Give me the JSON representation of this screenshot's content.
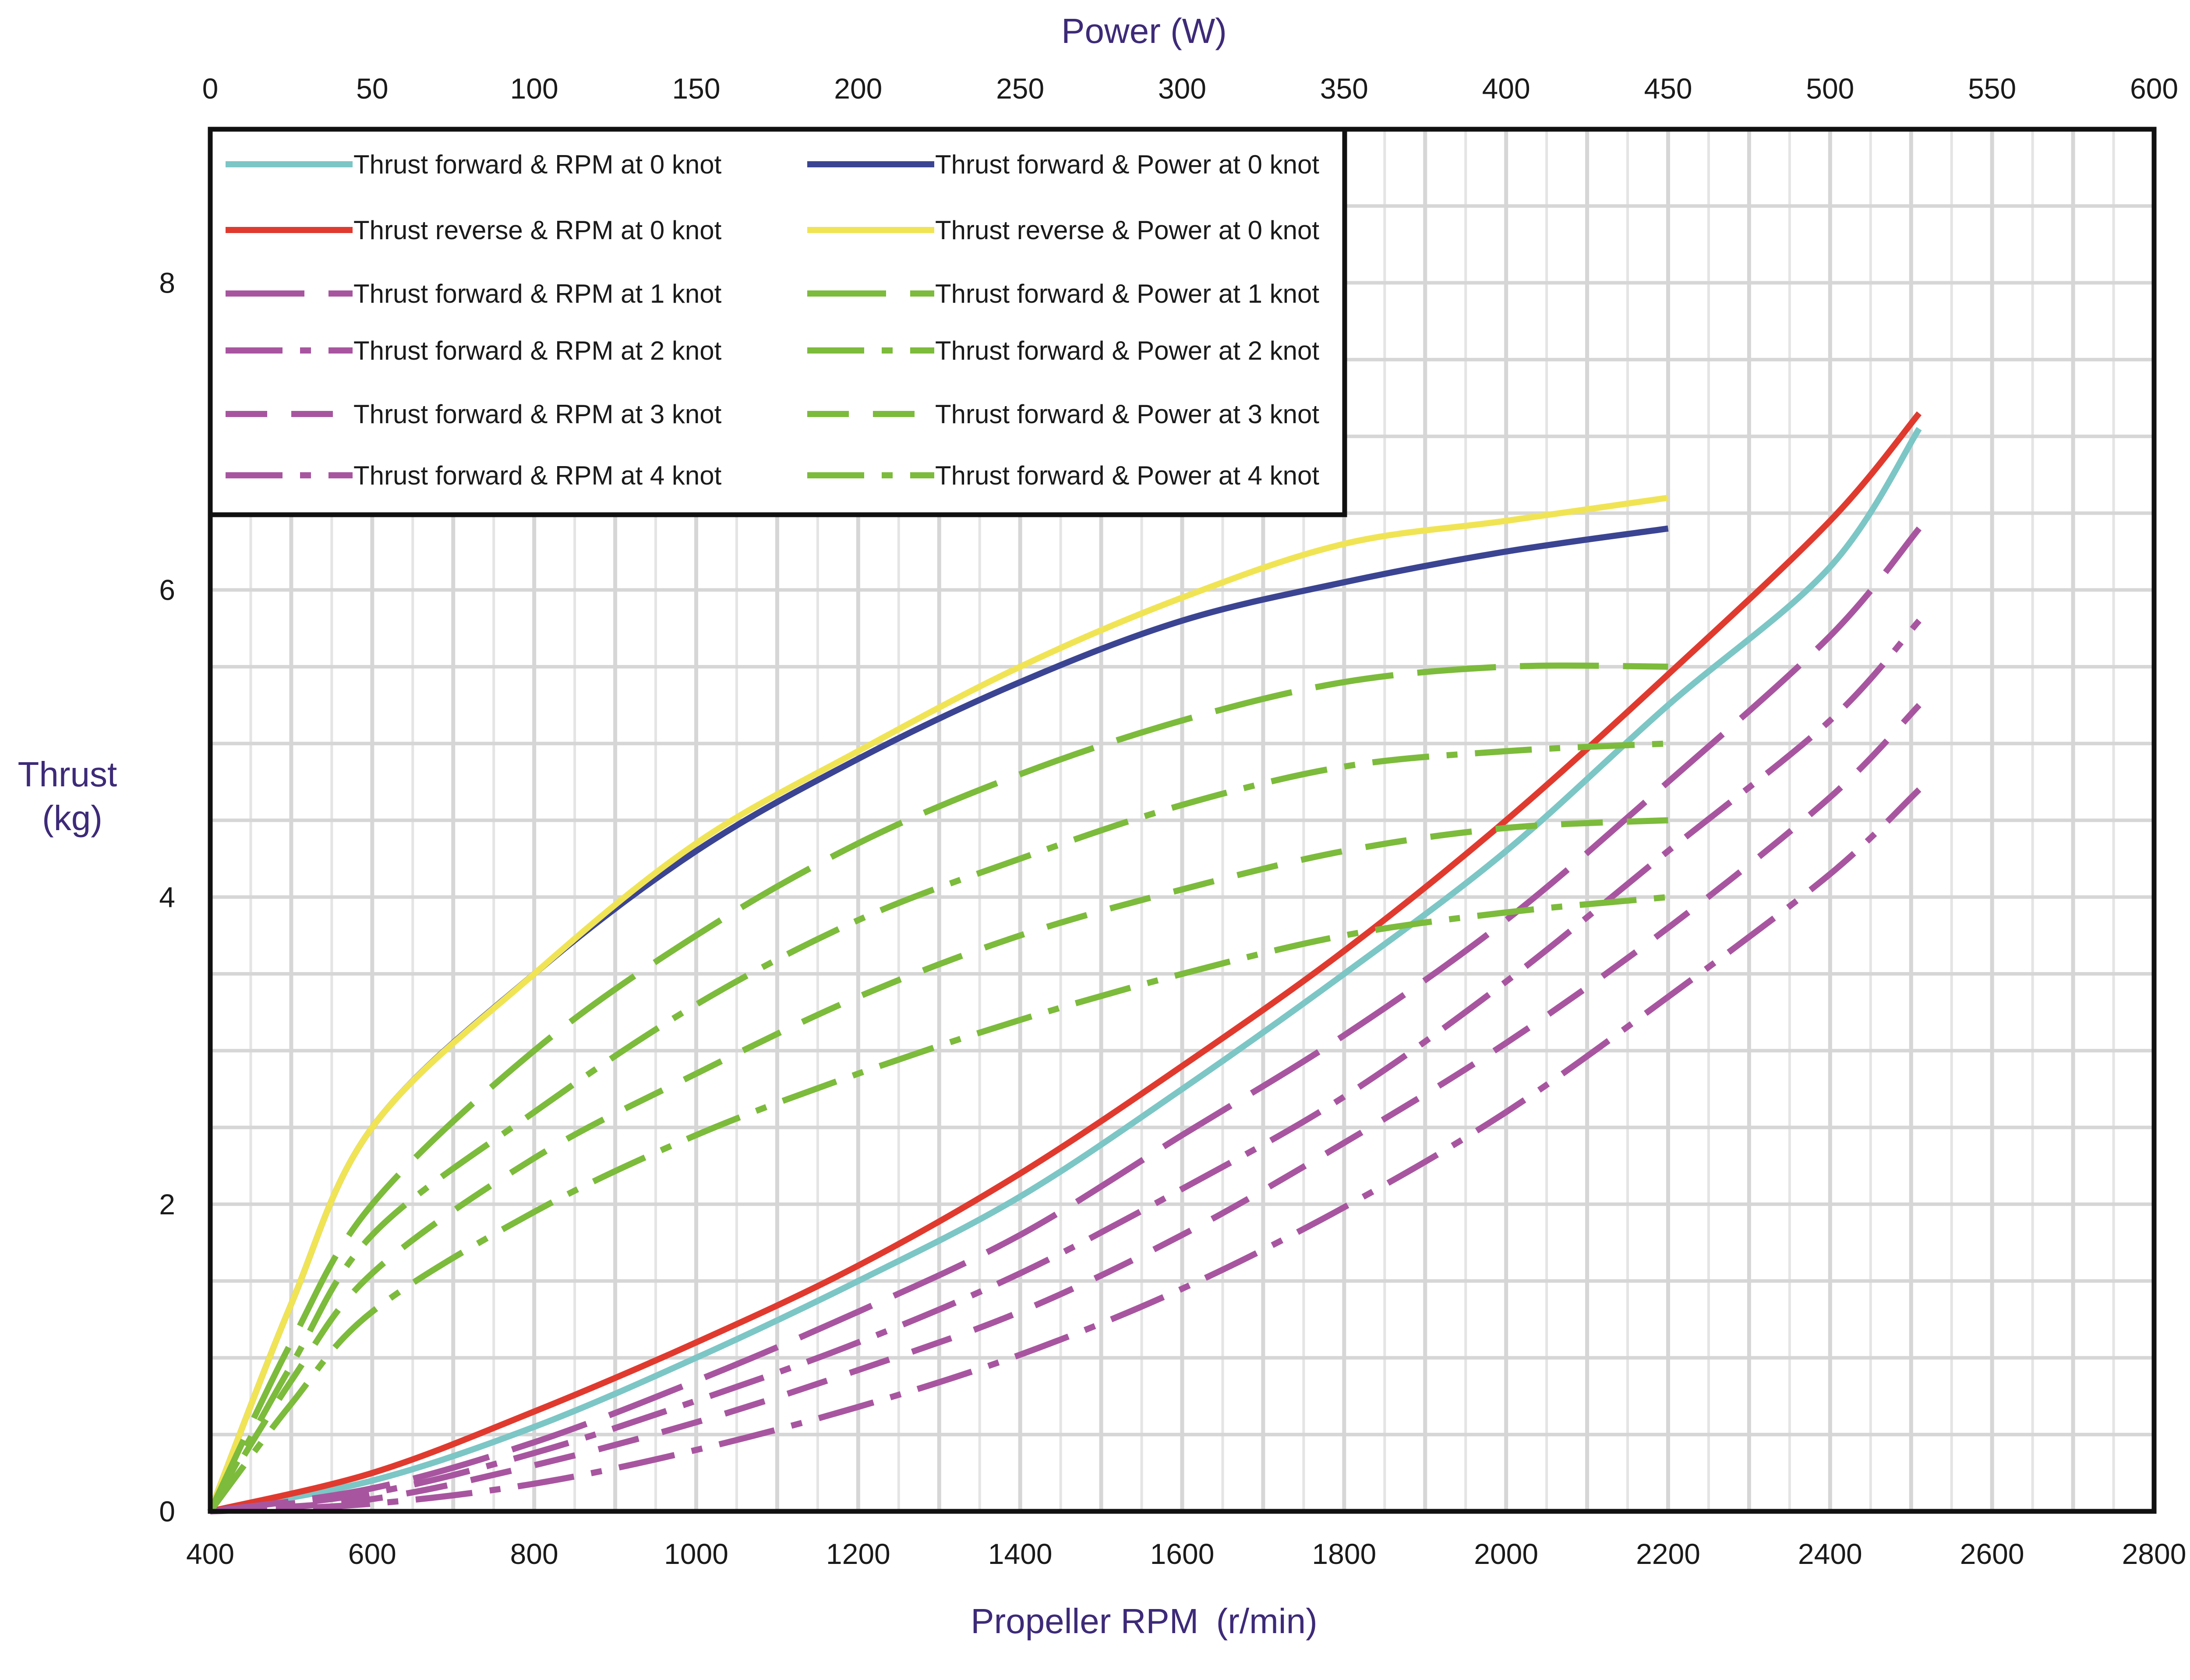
{
  "chart_data": {
    "type": "line",
    "top_axis": {
      "label": "Power (W)",
      "range": [
        0,
        600
      ],
      "ticks": [
        0,
        50,
        100,
        150,
        200,
        250,
        300,
        350,
        400,
        450,
        500,
        550,
        600
      ]
    },
    "bottom_axis": {
      "label_main": "Propeller RPM",
      "label_unit": "(r/min)",
      "range": [
        400,
        2800
      ],
      "ticks": [
        400,
        600,
        800,
        1000,
        1200,
        1400,
        1600,
        1800,
        2000,
        2200,
        2400,
        2600,
        2800
      ]
    },
    "y_axis": {
      "label_line1": "Thrust",
      "label_line2": "(kg)",
      "range": [
        0,
        9
      ],
      "ticks": [
        0,
        2,
        4,
        6,
        8
      ]
    },
    "grid": true,
    "legend_position": "top-left",
    "series": [
      {
        "name": "Thrust forward &  RPM at 0 knot",
        "axis": "rpm",
        "color": "#7cc6c6",
        "dash": "solid",
        "points": [
          [
            400,
            0
          ],
          [
            600,
            0.2
          ],
          [
            800,
            0.55
          ],
          [
            1000,
            1.0
          ],
          [
            1200,
            1.5
          ],
          [
            1400,
            2.05
          ],
          [
            1600,
            2.75
          ],
          [
            1800,
            3.5
          ],
          [
            2000,
            4.3
          ],
          [
            2200,
            5.25
          ],
          [
            2400,
            6.15
          ],
          [
            2510,
            7.05
          ]
        ]
      },
      {
        "name": "Thrust reverse &   RPM at 0 knot",
        "axis": "rpm",
        "color": "#e03a2f",
        "dash": "solid",
        "points": [
          [
            400,
            0
          ],
          [
            600,
            0.25
          ],
          [
            800,
            0.65
          ],
          [
            1000,
            1.1
          ],
          [
            1200,
            1.6
          ],
          [
            1400,
            2.2
          ],
          [
            1600,
            2.9
          ],
          [
            1800,
            3.65
          ],
          [
            2000,
            4.5
          ],
          [
            2200,
            5.45
          ],
          [
            2400,
            6.45
          ],
          [
            2510,
            7.15
          ]
        ]
      },
      {
        "name": "Thrust forward &  RPM at 1 knot",
        "axis": "rpm",
        "color": "#a855a0",
        "dash": "longdash",
        "points": [
          [
            400,
            0
          ],
          [
            600,
            0.15
          ],
          [
            800,
            0.45
          ],
          [
            1000,
            0.85
          ],
          [
            1200,
            1.3
          ],
          [
            1400,
            1.8
          ],
          [
            1600,
            2.45
          ],
          [
            1800,
            3.1
          ],
          [
            2000,
            3.85
          ],
          [
            2200,
            4.75
          ],
          [
            2400,
            5.7
          ],
          [
            2510,
            6.4
          ]
        ]
      },
      {
        "name": "Thrust forward &  RPM at 2 knot",
        "axis": "rpm",
        "color": "#a855a0",
        "dash": "dashdot",
        "points": [
          [
            400,
            0
          ],
          [
            600,
            0.12
          ],
          [
            800,
            0.38
          ],
          [
            1000,
            0.72
          ],
          [
            1200,
            1.1
          ],
          [
            1400,
            1.55
          ],
          [
            1600,
            2.1
          ],
          [
            1800,
            2.7
          ],
          [
            2000,
            3.45
          ],
          [
            2200,
            4.3
          ],
          [
            2400,
            5.15
          ],
          [
            2510,
            5.8
          ]
        ]
      },
      {
        "name": "Thrust forward &  RPM at 3 knot",
        "axis": "rpm",
        "color": "#a855a0",
        "dash": "dash",
        "points": [
          [
            400,
            0
          ],
          [
            600,
            0.08
          ],
          [
            800,
            0.3
          ],
          [
            1000,
            0.58
          ],
          [
            1200,
            0.92
          ],
          [
            1400,
            1.3
          ],
          [
            1600,
            1.8
          ],
          [
            1800,
            2.4
          ],
          [
            2000,
            3.05
          ],
          [
            2200,
            3.8
          ],
          [
            2400,
            4.65
          ],
          [
            2510,
            5.25
          ]
        ]
      },
      {
        "name": "Thrust forward &  RPM at 4 knot",
        "axis": "rpm",
        "color": "#a855a0",
        "dash": "dashdot",
        "points": [
          [
            400,
            0
          ],
          [
            600,
            0.05
          ],
          [
            800,
            0.18
          ],
          [
            1000,
            0.4
          ],
          [
            1200,
            0.68
          ],
          [
            1400,
            1.02
          ],
          [
            1600,
            1.45
          ],
          [
            1800,
            1.98
          ],
          [
            2000,
            2.6
          ],
          [
            2200,
            3.35
          ],
          [
            2400,
            4.15
          ],
          [
            2510,
            4.7
          ]
        ]
      },
      {
        "name": "Thrust forward & Power at 0 knot",
        "axis": "power",
        "color": "#3b4492",
        "dash": "solid",
        "points": [
          [
            0,
            0
          ],
          [
            25,
            1.35
          ],
          [
            50,
            2.5
          ],
          [
            100,
            3.5
          ],
          [
            150,
            4.3
          ],
          [
            200,
            4.9
          ],
          [
            250,
            5.4
          ],
          [
            300,
            5.8
          ],
          [
            350,
            6.05
          ],
          [
            400,
            6.25
          ],
          [
            450,
            6.4
          ]
        ]
      },
      {
        "name": "Thrust reverse & Power at 0 knot",
        "axis": "power",
        "color": "#f0e455",
        "dash": "solid",
        "points": [
          [
            0,
            0
          ],
          [
            25,
            1.35
          ],
          [
            50,
            2.5
          ],
          [
            100,
            3.5
          ],
          [
            150,
            4.35
          ],
          [
            200,
            4.95
          ],
          [
            250,
            5.5
          ],
          [
            300,
            5.95
          ],
          [
            350,
            6.3
          ],
          [
            400,
            6.45
          ],
          [
            450,
            6.6
          ]
        ]
      },
      {
        "name": "Thrust forward & Power at 1 knot",
        "axis": "power",
        "color": "#7cbb3b",
        "dash": "longdash",
        "points": [
          [
            0,
            0
          ],
          [
            25,
            1.1
          ],
          [
            50,
            2.0
          ],
          [
            100,
            3.0
          ],
          [
            150,
            3.75
          ],
          [
            200,
            4.35
          ],
          [
            250,
            4.8
          ],
          [
            300,
            5.15
          ],
          [
            350,
            5.4
          ],
          [
            400,
            5.5
          ],
          [
            450,
            5.5
          ]
        ]
      },
      {
        "name": "Thrust forward & Power at 2 knot",
        "axis": "power",
        "color": "#7cbb3b",
        "dash": "dashdot",
        "points": [
          [
            0,
            0
          ],
          [
            25,
            0.95
          ],
          [
            50,
            1.8
          ],
          [
            100,
            2.6
          ],
          [
            150,
            3.3
          ],
          [
            200,
            3.85
          ],
          [
            250,
            4.25
          ],
          [
            300,
            4.6
          ],
          [
            350,
            4.85
          ],
          [
            400,
            4.95
          ],
          [
            450,
            5.0
          ]
        ]
      },
      {
        "name": "Thrust forward & Power at 3 knot",
        "axis": "power",
        "color": "#7cbb3b",
        "dash": "dash",
        "points": [
          [
            0,
            0
          ],
          [
            25,
            0.85
          ],
          [
            50,
            1.55
          ],
          [
            100,
            2.3
          ],
          [
            150,
            2.85
          ],
          [
            200,
            3.35
          ],
          [
            250,
            3.75
          ],
          [
            300,
            4.05
          ],
          [
            350,
            4.3
          ],
          [
            400,
            4.45
          ],
          [
            450,
            4.5
          ]
        ]
      },
      {
        "name": "Thrust forward & Power at 4 knot",
        "axis": "power",
        "color": "#7cbb3b",
        "dash": "dashdot",
        "points": [
          [
            0,
            0
          ],
          [
            25,
            0.7
          ],
          [
            50,
            1.3
          ],
          [
            100,
            1.95
          ],
          [
            150,
            2.45
          ],
          [
            200,
            2.85
          ],
          [
            250,
            3.2
          ],
          [
            300,
            3.5
          ],
          [
            350,
            3.75
          ],
          [
            400,
            3.9
          ],
          [
            450,
            4.0
          ]
        ]
      }
    ]
  }
}
